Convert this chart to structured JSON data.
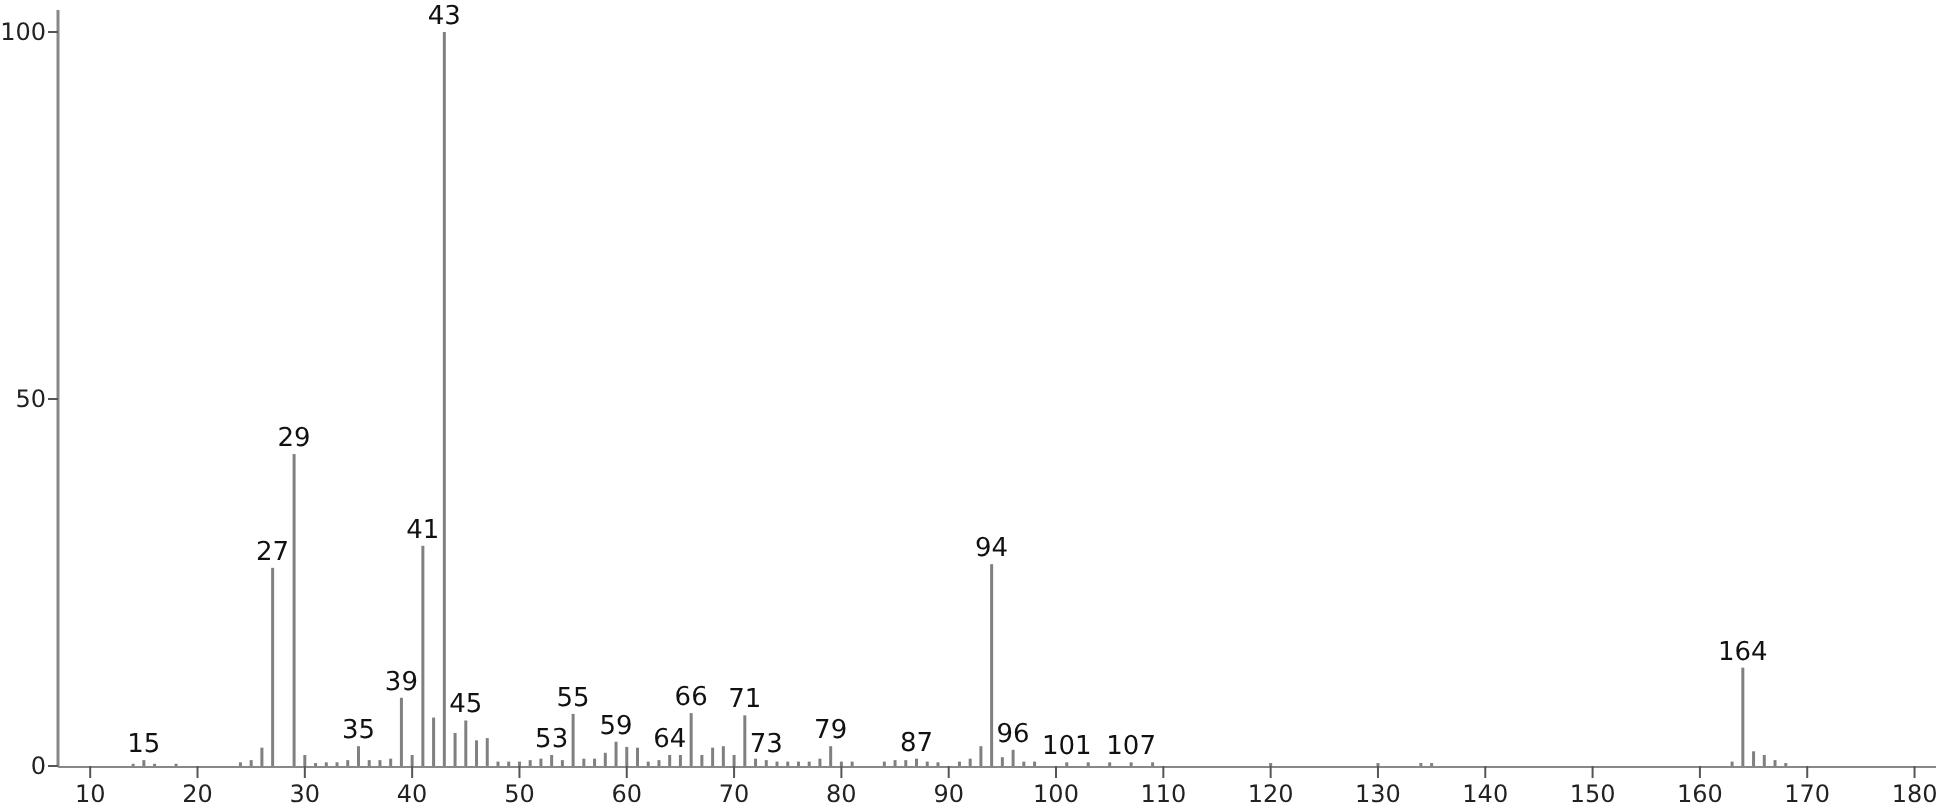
{
  "chart_data": {
    "type": "bar",
    "x": [
      14,
      15,
      16,
      18,
      24,
      25,
      26,
      27,
      29,
      30,
      31,
      32,
      33,
      34,
      35,
      36,
      37,
      38,
      39,
      40,
      41,
      42,
      43,
      44,
      45,
      46,
      47,
      48,
      49,
      50,
      51,
      52,
      53,
      54,
      55,
      56,
      57,
      58,
      59,
      60,
      61,
      62,
      63,
      64,
      65,
      66,
      67,
      68,
      69,
      70,
      71,
      72,
      73,
      74,
      75,
      76,
      77,
      78,
      79,
      80,
      81,
      84,
      85,
      86,
      87,
      88,
      89,
      91,
      92,
      93,
      94,
      95,
      96,
      97,
      98,
      101,
      103,
      105,
      107,
      109,
      120,
      130,
      134,
      135,
      163,
      164,
      165,
      166,
      167,
      168
    ],
    "values": [
      0.3,
      0.8,
      0.3,
      0.3,
      0.5,
      0.8,
      2.5,
      27,
      42.5,
      1.5,
      0.4,
      0.5,
      0.5,
      0.8,
      2.7,
      0.8,
      0.8,
      1,
      9.3,
      1.5,
      30,
      6.6,
      100,
      4.5,
      6.2,
      3.5,
      3.8,
      0.6,
      0.6,
      0.6,
      0.8,
      1,
      1.5,
      0.8,
      7.1,
      1,
      1,
      1.8,
      3.3,
      2.6,
      2.5,
      0.6,
      0.8,
      1.5,
      1.5,
      7.2,
      1.5,
      2.5,
      2.7,
      1.5,
      6.9,
      1,
      0.8,
      0.6,
      0.6,
      0.6,
      0.6,
      1,
      2.7,
      0.6,
      0.6,
      0.6,
      0.8,
      0.8,
      1,
      0.6,
      0.5,
      0.6,
      1,
      2.7,
      27.5,
      1.2,
      2.2,
      0.6,
      0.6,
      0.5,
      0.5,
      0.5,
      0.5,
      0.5,
      0.4,
      0.4,
      0.4,
      0.4,
      0.6,
      13.4,
      2,
      1.5,
      0.8,
      0.4
    ],
    "color": "#808080",
    "xlim": [
      7,
      182
    ],
    "xticks": [
      10,
      20,
      30,
      40,
      50,
      60,
      70,
      80,
      90,
      100,
      110,
      120,
      130,
      140,
      150,
      160,
      170,
      180
    ],
    "ylim": [
      0,
      103
    ],
    "yticks": [
      0,
      50,
      100
    ],
    "grid": false,
    "annotations": [
      {
        "text": "15",
        "x": 15,
        "y": 0.8
      },
      {
        "text": "27",
        "x": 27,
        "y": 27
      },
      {
        "text": "29",
        "x": 29,
        "y": 42.5
      },
      {
        "text": "35",
        "x": 35,
        "y": 2.7
      },
      {
        "text": "39",
        "x": 39,
        "y": 9.3
      },
      {
        "text": "41",
        "x": 41,
        "y": 30
      },
      {
        "text": "43",
        "x": 43,
        "y": 100
      },
      {
        "text": "45",
        "x": 45,
        "y": 6.2
      },
      {
        "text": "53",
        "x": 53,
        "y": 1.5
      },
      {
        "text": "55",
        "x": 55,
        "y": 7.1
      },
      {
        "text": "59",
        "x": 59,
        "y": 3.3
      },
      {
        "text": "64",
        "x": 64,
        "y": 1.5
      },
      {
        "text": "66",
        "x": 66,
        "y": 7.2
      },
      {
        "text": "71",
        "x": 71,
        "y": 6.9
      },
      {
        "text": "73",
        "x": 73,
        "y": 0.8
      },
      {
        "text": "79",
        "x": 79,
        "y": 2.7
      },
      {
        "text": "87",
        "x": 87,
        "y": 1
      },
      {
        "text": "94",
        "x": 94,
        "y": 27.5
      },
      {
        "text": "96",
        "x": 96,
        "y": 2.2
      },
      {
        "text": "101",
        "x": 101,
        "y": 0.5
      },
      {
        "text": "107",
        "x": 107,
        "y": 0.5
      },
      {
        "text": "164",
        "x": 164,
        "y": 13.4
      }
    ]
  }
}
